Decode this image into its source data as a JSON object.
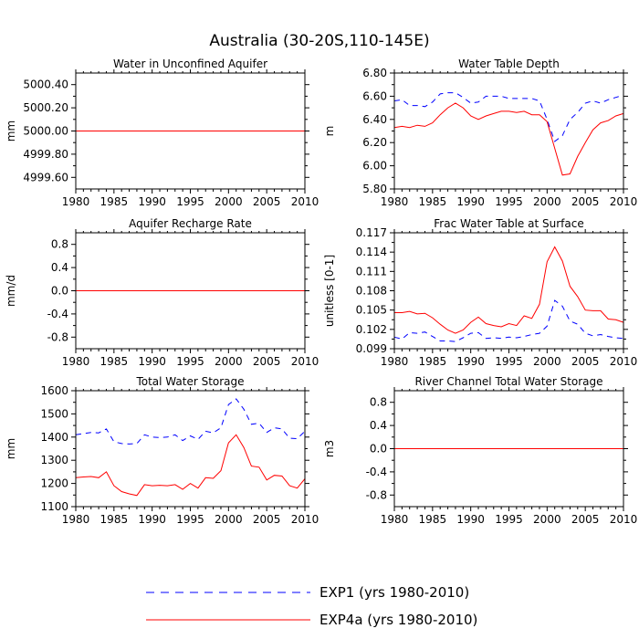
{
  "title": "Australia (30-20S,110-145E)",
  "legend": [
    {
      "name": "EXP1 (yrs 1980-2010)",
      "color": "#0000ff",
      "dash": true
    },
    {
      "name": "EXP4a (yrs 1980-2010)",
      "color": "#ff0000",
      "dash": false
    }
  ],
  "chart_data": [
    {
      "type": "line",
      "title": "Water in Unconfined Aquifer",
      "ylabel": "mm",
      "xlim": [
        1980,
        2010
      ],
      "ylim": [
        4999.5,
        5000.5
      ],
      "xticks": [
        1980,
        1985,
        1990,
        1995,
        2000,
        2005,
        2010
      ],
      "yticks": [
        4999.6,
        4999.8,
        5000.0,
        5000.2,
        5000.4
      ],
      "ytick_labels": [
        "4999.60",
        "4999.80",
        "5000.00",
        "5000.20",
        "5000.40"
      ],
      "x": [
        1980,
        2010
      ],
      "series": [
        {
          "values": [
            5000.0,
            5000.0
          ]
        },
        {
          "values": [
            5000.0,
            5000.0
          ]
        }
      ]
    },
    {
      "type": "line",
      "title": "Water Table Depth",
      "ylabel": "m",
      "xlim": [
        1980,
        2010
      ],
      "ylim": [
        5.8,
        6.8
      ],
      "xticks": [
        1980,
        1985,
        1990,
        1995,
        2000,
        2005,
        2010
      ],
      "yticks": [
        5.8,
        6.0,
        6.2,
        6.4,
        6.6,
        6.8
      ],
      "ytick_labels": [
        "5.80",
        "6.00",
        "6.20",
        "6.40",
        "6.60",
        "6.80"
      ],
      "x": [
        1980,
        1981,
        1982,
        1983,
        1984,
        1985,
        1986,
        1987,
        1988,
        1989,
        1990,
        1991,
        1992,
        1993,
        1994,
        1995,
        1996,
        1997,
        1998,
        1999,
        2000,
        2001,
        2002,
        2003,
        2004,
        2005,
        2006,
        2007,
        2008,
        2009,
        2010
      ],
      "series": [
        {
          "values": [
            6.56,
            6.57,
            6.52,
            6.52,
            6.51,
            6.55,
            6.62,
            6.63,
            6.63,
            6.59,
            6.54,
            6.55,
            6.6,
            6.6,
            6.6,
            6.58,
            6.58,
            6.58,
            6.58,
            6.56,
            6.4,
            6.21,
            6.26,
            6.4,
            6.46,
            6.54,
            6.56,
            6.54,
            6.57,
            6.59,
            6.61
          ]
        },
        {
          "values": [
            6.33,
            6.34,
            6.33,
            6.35,
            6.34,
            6.37,
            6.44,
            6.5,
            6.54,
            6.5,
            6.43,
            6.4,
            6.43,
            6.45,
            6.47,
            6.47,
            6.46,
            6.47,
            6.44,
            6.44,
            6.38,
            6.15,
            5.92,
            5.93,
            6.08,
            6.2,
            6.31,
            6.37,
            6.39,
            6.43,
            6.45
          ]
        }
      ]
    },
    {
      "type": "line",
      "title": "Aquifer Recharge Rate",
      "ylabel": "mm/d",
      "xlim": [
        1980,
        2010
      ],
      "ylim": [
        -1.0,
        1.0
      ],
      "xticks": [
        1980,
        1985,
        1990,
        1995,
        2000,
        2005,
        2010
      ],
      "yticks": [
        -0.8,
        -0.4,
        0.0,
        0.4,
        0.8
      ],
      "ytick_labels": [
        "-0.8",
        "-0.4",
        "0.0",
        "0.4",
        "0.8"
      ],
      "x": [
        1980,
        2010
      ],
      "series": [
        {
          "values": [
            0.0,
            0.0
          ]
        },
        {
          "values": [
            0.0,
            0.0
          ]
        }
      ]
    },
    {
      "type": "line",
      "title": "Frac Water Table at Surface",
      "ylabel": "unitless [0-1]",
      "xlim": [
        1980,
        2010
      ],
      "ylim": [
        0.099,
        0.117
      ],
      "xticks": [
        1980,
        1985,
        1990,
        1995,
        2000,
        2005,
        2010
      ],
      "yticks": [
        0.099,
        0.102,
        0.105,
        0.108,
        0.111,
        0.114,
        0.117
      ],
      "ytick_labels": [
        "0.099",
        "0.102",
        "0.105",
        "0.108",
        "0.111",
        "0.114",
        "0.117"
      ],
      "x": [
        1980,
        1981,
        1982,
        1983,
        1984,
        1985,
        1986,
        1987,
        1988,
        1989,
        1990,
        1991,
        1992,
        1993,
        1994,
        1995,
        1996,
        1997,
        1998,
        1999,
        2000,
        2001,
        2002,
        2003,
        2004,
        2005,
        2006,
        2007,
        2008,
        2009,
        2010
      ],
      "series": [
        {
          "values": [
            0.1008,
            0.1005,
            0.1015,
            0.1014,
            0.1016,
            0.1009,
            0.1002,
            0.1002,
            0.1001,
            0.1007,
            0.1014,
            0.1015,
            0.1006,
            0.1007,
            0.1006,
            0.1008,
            0.1007,
            0.1009,
            0.1012,
            0.1014,
            0.1025,
            0.1065,
            0.1056,
            0.1033,
            0.1028,
            0.1014,
            0.101,
            0.1012,
            0.1009,
            0.1007,
            0.1006
          ]
        },
        {
          "values": [
            0.1046,
            0.1046,
            0.1048,
            0.1044,
            0.1045,
            0.1038,
            0.1028,
            0.1019,
            0.1014,
            0.1019,
            0.1031,
            0.1039,
            0.1029,
            0.1026,
            0.1024,
            0.1029,
            0.1026,
            0.1041,
            0.1037,
            0.1059,
            0.1125,
            0.1148,
            0.1126,
            0.1087,
            0.1071,
            0.105,
            0.1049,
            0.1049,
            0.1036,
            0.1035,
            0.1031
          ]
        }
      ]
    },
    {
      "type": "line",
      "title": "Total Water Storage",
      "ylabel": "mm",
      "xlim": [
        1980,
        2010
      ],
      "ylim": [
        1100,
        1600
      ],
      "xticks": [
        1980,
        1985,
        1990,
        1995,
        2000,
        2005,
        2010
      ],
      "yticks": [
        1100,
        1200,
        1300,
        1400,
        1500,
        1600
      ],
      "ytick_labels": [
        "1100",
        "1200",
        "1300",
        "1400",
        "1500",
        "1600"
      ],
      "x": [
        1980,
        1981,
        1982,
        1983,
        1984,
        1985,
        1986,
        1987,
        1988,
        1989,
        1990,
        1991,
        1992,
        1993,
        1994,
        1995,
        1996,
        1997,
        1998,
        1999,
        2000,
        2001,
        2002,
        2003,
        2004,
        2005,
        2006,
        2007,
        2008,
        2009,
        2010
      ],
      "series": [
        {
          "values": [
            1410,
            1415,
            1420,
            1418,
            1435,
            1380,
            1372,
            1370,
            1372,
            1410,
            1400,
            1398,
            1400,
            1410,
            1385,
            1405,
            1390,
            1425,
            1418,
            1440,
            1540,
            1565,
            1520,
            1455,
            1460,
            1420,
            1440,
            1435,
            1395,
            1393,
            1425
          ]
        },
        {
          "values": [
            1225,
            1228,
            1230,
            1225,
            1250,
            1190,
            1165,
            1155,
            1148,
            1195,
            1190,
            1192,
            1190,
            1195,
            1175,
            1200,
            1180,
            1225,
            1222,
            1255,
            1375,
            1410,
            1355,
            1275,
            1270,
            1215,
            1235,
            1232,
            1190,
            1180,
            1220
          ]
        }
      ]
    },
    {
      "type": "line",
      "title": "River Channel Total Water Storage",
      "ylabel": "m3",
      "xlim": [
        1980,
        2010
      ],
      "ylim": [
        -1.0,
        1.0
      ],
      "xticks": [
        1980,
        1985,
        1990,
        1995,
        2000,
        2005,
        2010
      ],
      "yticks": [
        -0.8,
        -0.4,
        0.0,
        0.4,
        0.8
      ],
      "ytick_labels": [
        "-0.8",
        "-0.4",
        "0.0",
        "0.4",
        "0.8"
      ],
      "x": [
        1980,
        2010
      ],
      "series": [
        {
          "values": [
            0.0,
            0.0
          ]
        },
        {
          "values": [
            0.0,
            0.0
          ]
        }
      ]
    }
  ]
}
